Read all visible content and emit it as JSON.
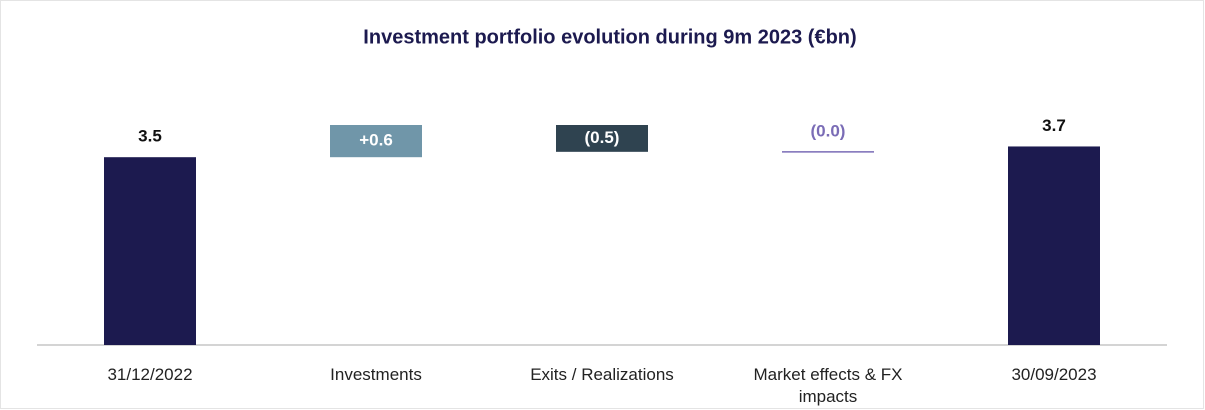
{
  "chart_data": {
    "type": "waterfall",
    "title": "Investment portfolio evolution during 9m 2023 (€bn)",
    "categories": [
      "31/12/2022",
      "Investments",
      "Exits / Realizations",
      "Market effects & FX impacts",
      "30/09/2023"
    ],
    "values": [
      3.5,
      0.6,
      -0.5,
      0,
      3.7
    ],
    "value_labels": [
      "3.5",
      "+0.6",
      "(0.5)",
      "(0.0)",
      "3.7"
    ],
    "measure": [
      "absolute",
      "relative",
      "relative",
      "relative",
      "total"
    ],
    "colors": [
      "#1c1a4f",
      "#7096a9",
      "#2f4350",
      "#7a6cb6",
      "#1c1a4f"
    ]
  }
}
